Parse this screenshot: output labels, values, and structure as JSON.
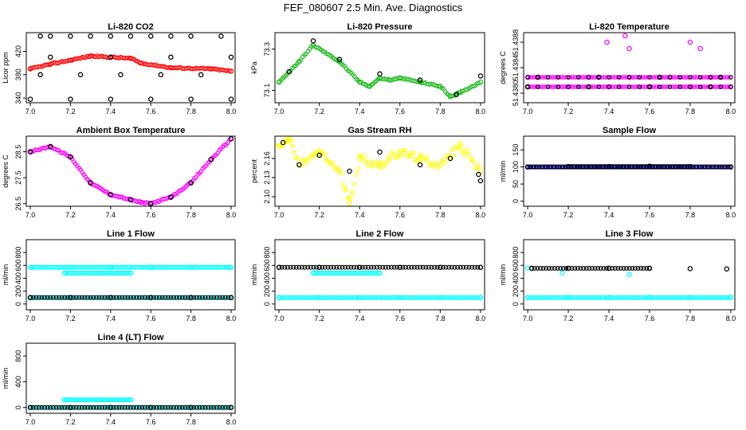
{
  "title": "FEF_080607  2.5 Min. Ave. Diagnostics",
  "colors": {
    "red": "#ff0000",
    "green": "#22bb22",
    "magenta": "#ff00ff",
    "yellow": "#ffff00",
    "blue": "#0000dd",
    "cyan": "#00ffff",
    "black": "#000000"
  },
  "chart_data": [
    {
      "type": "scatter",
      "title": "Li-820 CO2",
      "ylabel": "Licor ppm",
      "x_ticks": [
        "7.0",
        "7.2",
        "7.4",
        "7.6",
        "7.8",
        "8.0"
      ],
      "y_ticks": [
        "340",
        "380",
        "420"
      ],
      "xlim": [
        6.98,
        8.02
      ],
      "ylim": [
        332,
        452
      ],
      "series": [
        {
          "color": "red",
          "points": [
            [
              7.0,
              390
            ],
            [
              7.1,
              398
            ],
            [
              7.2,
              405
            ],
            [
              7.3,
              412
            ],
            [
              7.4,
              410
            ],
            [
              7.5,
              408
            ],
            [
              7.55,
              400
            ],
            [
              7.7,
              392
            ],
            [
              7.9,
              390
            ],
            [
              8.0,
              386
            ]
          ]
        },
        {
          "color": "black",
          "points": [
            [
              7.05,
              446
            ],
            [
              7.1,
              446
            ],
            [
              7.2,
              446
            ],
            [
              7.3,
              446
            ],
            [
              7.4,
              446
            ],
            [
              7.5,
              446
            ],
            [
              7.6,
              446
            ],
            [
              7.7,
              446
            ],
            [
              7.8,
              446
            ],
            [
              7.95,
              446
            ],
            [
              7.1,
              410
            ],
            [
              7.4,
              410
            ],
            [
              7.7,
              410
            ],
            [
              8.0,
              410
            ],
            [
              7.05,
              380
            ],
            [
              7.25,
              380
            ],
            [
              7.45,
              380
            ],
            [
              7.65,
              380
            ],
            [
              7.85,
              380
            ],
            [
              7.0,
              338
            ],
            [
              7.2,
              338
            ],
            [
              7.4,
              338
            ],
            [
              7.6,
              338
            ],
            [
              7.8,
              338
            ],
            [
              8.0,
              338
            ]
          ]
        }
      ]
    },
    {
      "type": "scatter",
      "title": "Li-820 Pressure",
      "ylabel": "kPa",
      "x_ticks": [
        "7.0",
        "7.2",
        "7.4",
        "7.6",
        "7.8",
        "8.0"
      ],
      "y_ticks": [
        "73.1",
        "73.3"
      ],
      "xlim": [
        6.98,
        8.02
      ],
      "ylim": [
        73.04,
        73.38
      ],
      "series": [
        {
          "color": "green",
          "points": [
            [
              7.0,
              73.14
            ],
            [
              7.1,
              73.24
            ],
            [
              7.17,
              73.32
            ],
            [
              7.3,
              73.24
            ],
            [
              7.4,
              73.14
            ],
            [
              7.45,
              73.12
            ],
            [
              7.5,
              73.16
            ],
            [
              7.55,
              73.15
            ],
            [
              7.6,
              73.16
            ],
            [
              7.7,
              73.14
            ],
            [
              7.8,
              73.12
            ],
            [
              7.85,
              73.07
            ],
            [
              7.9,
              73.09
            ],
            [
              8.0,
              73.14
            ]
          ]
        },
        {
          "color": "black",
          "points": [
            [
              7.05,
              73.19
            ],
            [
              7.17,
              73.34
            ],
            [
              7.3,
              73.25
            ],
            [
              7.5,
              73.18
            ],
            [
              7.7,
              73.15
            ],
            [
              7.88,
              73.08
            ],
            [
              8.0,
              73.17
            ]
          ]
        }
      ]
    },
    {
      "type": "scatter",
      "title": "Li-820 Temperature",
      "ylabel": "degrees C",
      "x_ticks": [
        "7.0",
        "7.2",
        "7.4",
        "7.6",
        "7.8",
        "8.0"
      ],
      "y_ticks": [
        "51.4380",
        "51.4384",
        "51.4388"
      ],
      "xlim": [
        6.98,
        8.02
      ],
      "ylim": [
        51.43785,
        51.43895
      ],
      "series": [
        {
          "color": "magenta",
          "points": [
            [
              7.0,
              51.4381
            ],
            [
              7.2,
              51.4381
            ],
            [
              7.4,
              51.4381
            ],
            [
              7.6,
              51.4381
            ],
            [
              7.8,
              51.4381
            ],
            [
              8.0,
              51.4381
            ],
            [
              7.0,
              51.43825
            ],
            [
              7.3,
              51.43825
            ],
            [
              7.5,
              51.43825
            ],
            [
              7.7,
              51.43825
            ],
            [
              7.9,
              51.43825
            ],
            [
              7.39,
              51.4388
            ],
            [
              7.48,
              51.4389
            ],
            [
              7.5,
              51.4387
            ],
            [
              7.8,
              51.4388
            ],
            [
              7.85,
              51.4387
            ]
          ]
        },
        {
          "color": "black",
          "points": [
            [
              7.0,
              51.4381
            ],
            [
              7.3,
              51.4381
            ],
            [
              7.6,
              51.4381
            ],
            [
              7.9,
              51.4381
            ],
            [
              7.05,
              51.43825
            ],
            [
              7.35,
              51.43825
            ],
            [
              7.65,
              51.43825
            ],
            [
              7.95,
              51.43825
            ]
          ]
        }
      ]
    },
    {
      "type": "scatter",
      "title": "Ambient Box Temperature",
      "ylabel": "degrees C",
      "x_ticks": [
        "7.0",
        "7.2",
        "7.4",
        "7.6",
        "7.8",
        "8.0"
      ],
      "y_ticks": [
        "26.5",
        "27.5",
        "28.5"
      ],
      "xlim": [
        6.98,
        8.02
      ],
      "ylim": [
        26.4,
        29.1
      ],
      "series": [
        {
          "color": "magenta",
          "points": [
            [
              7.0,
              28.5
            ],
            [
              7.1,
              28.7
            ],
            [
              7.2,
              28.3
            ],
            [
              7.3,
              27.3
            ],
            [
              7.4,
              26.85
            ],
            [
              7.5,
              26.65
            ],
            [
              7.55,
              26.55
            ],
            [
              7.6,
              26.5
            ],
            [
              7.7,
              26.75
            ],
            [
              7.8,
              27.3
            ],
            [
              7.9,
              28.2
            ],
            [
              8.0,
              29.0
            ]
          ]
        },
        {
          "color": "black",
          "points": [
            [
              7.0,
              28.5
            ],
            [
              7.1,
              28.7
            ],
            [
              7.2,
              28.3
            ],
            [
              7.3,
              27.3
            ],
            [
              7.4,
              26.85
            ],
            [
              7.5,
              26.65
            ],
            [
              7.6,
              26.5
            ],
            [
              7.7,
              26.75
            ],
            [
              7.8,
              27.3
            ],
            [
              7.9,
              28.2
            ],
            [
              8.0,
              29.0
            ]
          ]
        }
      ]
    },
    {
      "type": "scatter",
      "title": "Gas Stream RH",
      "ylabel": "percent",
      "x_ticks": [
        "7.0",
        "7.2",
        "7.4",
        "7.6",
        "7.8",
        "8.0"
      ],
      "y_ticks": [
        "2.10",
        "2.13",
        "2.16"
      ],
      "xlim": [
        6.98,
        8.02
      ],
      "ylim": [
        2.085,
        2.195
      ],
      "series": [
        {
          "color": "yellow",
          "points": [
            [
              7.0,
              2.18
            ],
            [
              7.05,
              2.19
            ],
            [
              7.1,
              2.15
            ],
            [
              7.2,
              2.17
            ],
            [
              7.3,
              2.14
            ],
            [
              7.35,
              2.09
            ],
            [
              7.4,
              2.16
            ],
            [
              7.5,
              2.15
            ],
            [
              7.6,
              2.17
            ],
            [
              7.7,
              2.16
            ],
            [
              7.8,
              2.15
            ],
            [
              7.9,
              2.18
            ],
            [
              8.0,
              2.14
            ]
          ]
        },
        {
          "color": "black",
          "points": [
            [
              7.02,
              2.185
            ],
            [
              7.1,
              2.15
            ],
            [
              7.2,
              2.165
            ],
            [
              7.35,
              2.14
            ],
            [
              7.5,
              2.17
            ],
            [
              7.7,
              2.15
            ],
            [
              7.85,
              2.16
            ],
            [
              7.99,
              2.135
            ],
            [
              8.0,
              2.125
            ]
          ]
        }
      ]
    },
    {
      "type": "scatter",
      "title": "Sample Flow",
      "ylabel": "ml/min",
      "x_ticks": [
        "7.0",
        "7.2",
        "7.4",
        "7.6",
        "7.8",
        "8.0"
      ],
      "y_ticks": [
        "0",
        "50",
        "100",
        "150"
      ],
      "xlim": [
        6.98,
        8.02
      ],
      "ylim": [
        -15,
        190
      ],
      "series": [
        {
          "color": "blue",
          "points": [
            [
              7.0,
              100
            ],
            [
              7.2,
              101
            ],
            [
              7.4,
              101
            ],
            [
              7.6,
              102
            ],
            [
              7.8,
              101
            ],
            [
              8.0,
              100
            ]
          ]
        },
        {
          "color": "black",
          "points": [
            [
              7.0,
              100
            ],
            [
              7.2,
              101
            ],
            [
              7.4,
              101
            ],
            [
              7.6,
              102
            ],
            [
              7.8,
              101
            ],
            [
              8.0,
              100
            ]
          ]
        }
      ]
    },
    {
      "type": "scatter",
      "title": "Line 1 Flow",
      "ylabel": "ml/min",
      "x_ticks": [
        "7.0",
        "7.2",
        "7.4",
        "7.6",
        "7.8",
        "8.0"
      ],
      "y_ticks": [
        "0",
        "200",
        "400",
        "600",
        "800"
      ],
      "xlim": [
        6.98,
        8.02
      ],
      "ylim": [
        -90,
        1000
      ],
      "series": [
        {
          "color": "cyan",
          "points": [
            [
              7.0,
              570
            ],
            [
              7.2,
              570
            ],
            [
              7.4,
              570
            ],
            [
              7.6,
              570
            ],
            [
              7.8,
              570
            ],
            [
              8.0,
              570
            ],
            [
              7.0,
              100
            ],
            [
              8.0,
              100
            ],
            [
              7.17,
              480
            ],
            [
              7.5,
              480
            ]
          ]
        },
        {
          "color": "black",
          "points": [
            [
              7.0,
              100
            ],
            [
              7.2,
              100
            ],
            [
              7.4,
              100
            ],
            [
              7.6,
              100
            ],
            [
              7.8,
              100
            ],
            [
              8.0,
              100
            ]
          ]
        }
      ]
    },
    {
      "type": "scatter",
      "title": "Line 2 Flow",
      "ylabel": "ml/min",
      "x_ticks": [
        "7.0",
        "7.2",
        "7.4",
        "7.6",
        "7.8",
        "8.0"
      ],
      "y_ticks": [
        "0",
        "200",
        "400",
        "600",
        "800"
      ],
      "xlim": [
        6.98,
        8.02
      ],
      "ylim": [
        -90,
        1000
      ],
      "series": [
        {
          "color": "cyan",
          "points": [
            [
              7.0,
              100
            ],
            [
              7.2,
              100
            ],
            [
              7.4,
              100
            ],
            [
              7.6,
              100
            ],
            [
              7.8,
              100
            ],
            [
              8.0,
              100
            ],
            [
              7.0,
              570
            ],
            [
              7.17,
              480
            ],
            [
              7.5,
              480
            ]
          ]
        },
        {
          "color": "black",
          "points": [
            [
              7.0,
              570
            ],
            [
              7.2,
              570
            ],
            [
              7.4,
              570
            ],
            [
              7.6,
              570
            ],
            [
              7.8,
              570
            ],
            [
              8.0,
              570
            ]
          ]
        }
      ]
    },
    {
      "type": "scatter",
      "title": "Line 3 Flow",
      "ylabel": "ml/min",
      "x_ticks": [
        "7.0",
        "7.2",
        "7.4",
        "7.6",
        "7.8",
        "8.0"
      ],
      "y_ticks": [
        "0",
        "200",
        "400",
        "600",
        "800"
      ],
      "xlim": [
        6.98,
        8.02
      ],
      "ylim": [
        -90,
        1000
      ],
      "series": [
        {
          "color": "cyan",
          "points": [
            [
              7.0,
              100
            ],
            [
              7.2,
              100
            ],
            [
              7.4,
              100
            ],
            [
              7.6,
              100
            ],
            [
              7.8,
              100
            ],
            [
              8.0,
              100
            ],
            [
              7.0,
              560
            ],
            [
              7.17,
              480
            ],
            [
              7.5,
              460
            ]
          ]
        },
        {
          "color": "black",
          "points": [
            [
              7.02,
              555
            ],
            [
              7.2,
              555
            ],
            [
              7.4,
              555
            ],
            [
              7.6,
              555
            ],
            [
              7.8,
              550
            ],
            [
              7.98,
              545
            ]
          ]
        }
      ]
    },
    {
      "type": "scatter",
      "title": "Line 4 (LT) Flow",
      "ylabel": "ml/min",
      "x_ticks": [
        "7.0",
        "7.2",
        "7.4",
        "7.6",
        "7.8",
        "8.0"
      ],
      "y_ticks": [
        "0",
        "400",
        "800"
      ],
      "xlim": [
        6.98,
        8.02
      ],
      "ylim": [
        -90,
        1000
      ],
      "series": [
        {
          "color": "cyan",
          "points": [
            [
              7.0,
              0
            ],
            [
              7.2,
              0
            ],
            [
              7.4,
              0
            ],
            [
              7.6,
              0
            ],
            [
              7.8,
              0
            ],
            [
              8.0,
              0
            ],
            [
              7.17,
              120
            ],
            [
              7.5,
              120
            ]
          ]
        },
        {
          "color": "black",
          "points": [
            [
              7.0,
              0
            ],
            [
              7.2,
              0
            ],
            [
              7.4,
              0
            ],
            [
              7.6,
              0
            ],
            [
              7.8,
              0
            ],
            [
              8.0,
              0
            ]
          ]
        }
      ]
    }
  ]
}
